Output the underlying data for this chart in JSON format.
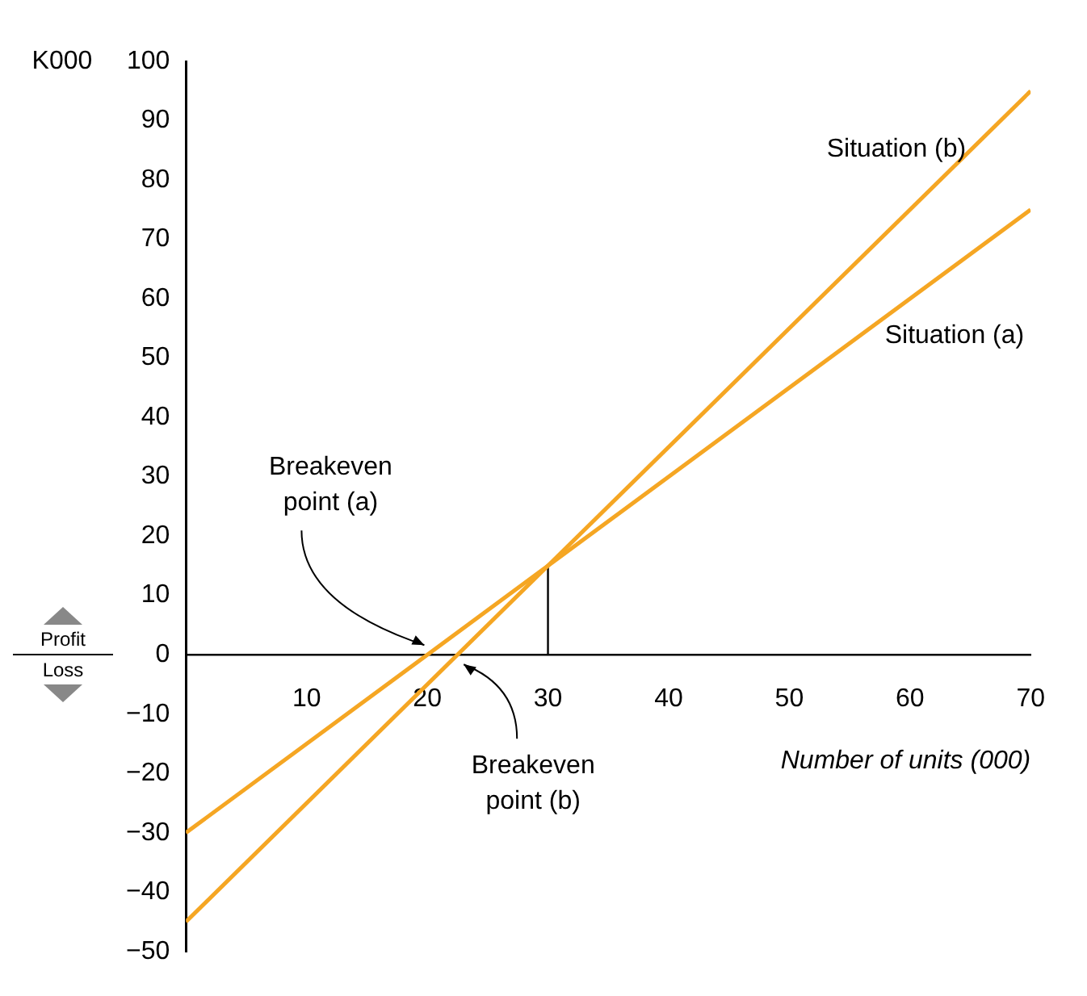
{
  "chart_data": {
    "type": "line",
    "xlabel": "Number of units (000)",
    "ylabel": "K000",
    "x": [
      0,
      70
    ],
    "xlim": [
      0,
      70
    ],
    "xticks": [
      10,
      20,
      30,
      40,
      50,
      60,
      70
    ],
    "ylim": [
      -50,
      100
    ],
    "yticks": [
      -50,
      -40,
      -30,
      -20,
      -10,
      0,
      10,
      20,
      30,
      40,
      50,
      60,
      70,
      80,
      90,
      100
    ],
    "series": [
      {
        "name": "Situation (a)",
        "color": "#f5a623",
        "values": [
          -30,
          75
        ]
      },
      {
        "name": "Situation (b)",
        "color": "#f5a623",
        "values": [
          -45,
          95
        ]
      },
      {
        "type": "line",
        "color": "#000000",
        "x": [
          30,
          30
        ],
        "values": [
          0,
          15
        ]
      }
    ],
    "annotations": [
      "Breakeven point (a)",
      "Breakeven point (b)",
      "Profit",
      "Loss"
    ],
    "grid": false,
    "legend": false,
    "marker": "none",
    "line_style": "solid"
  }
}
